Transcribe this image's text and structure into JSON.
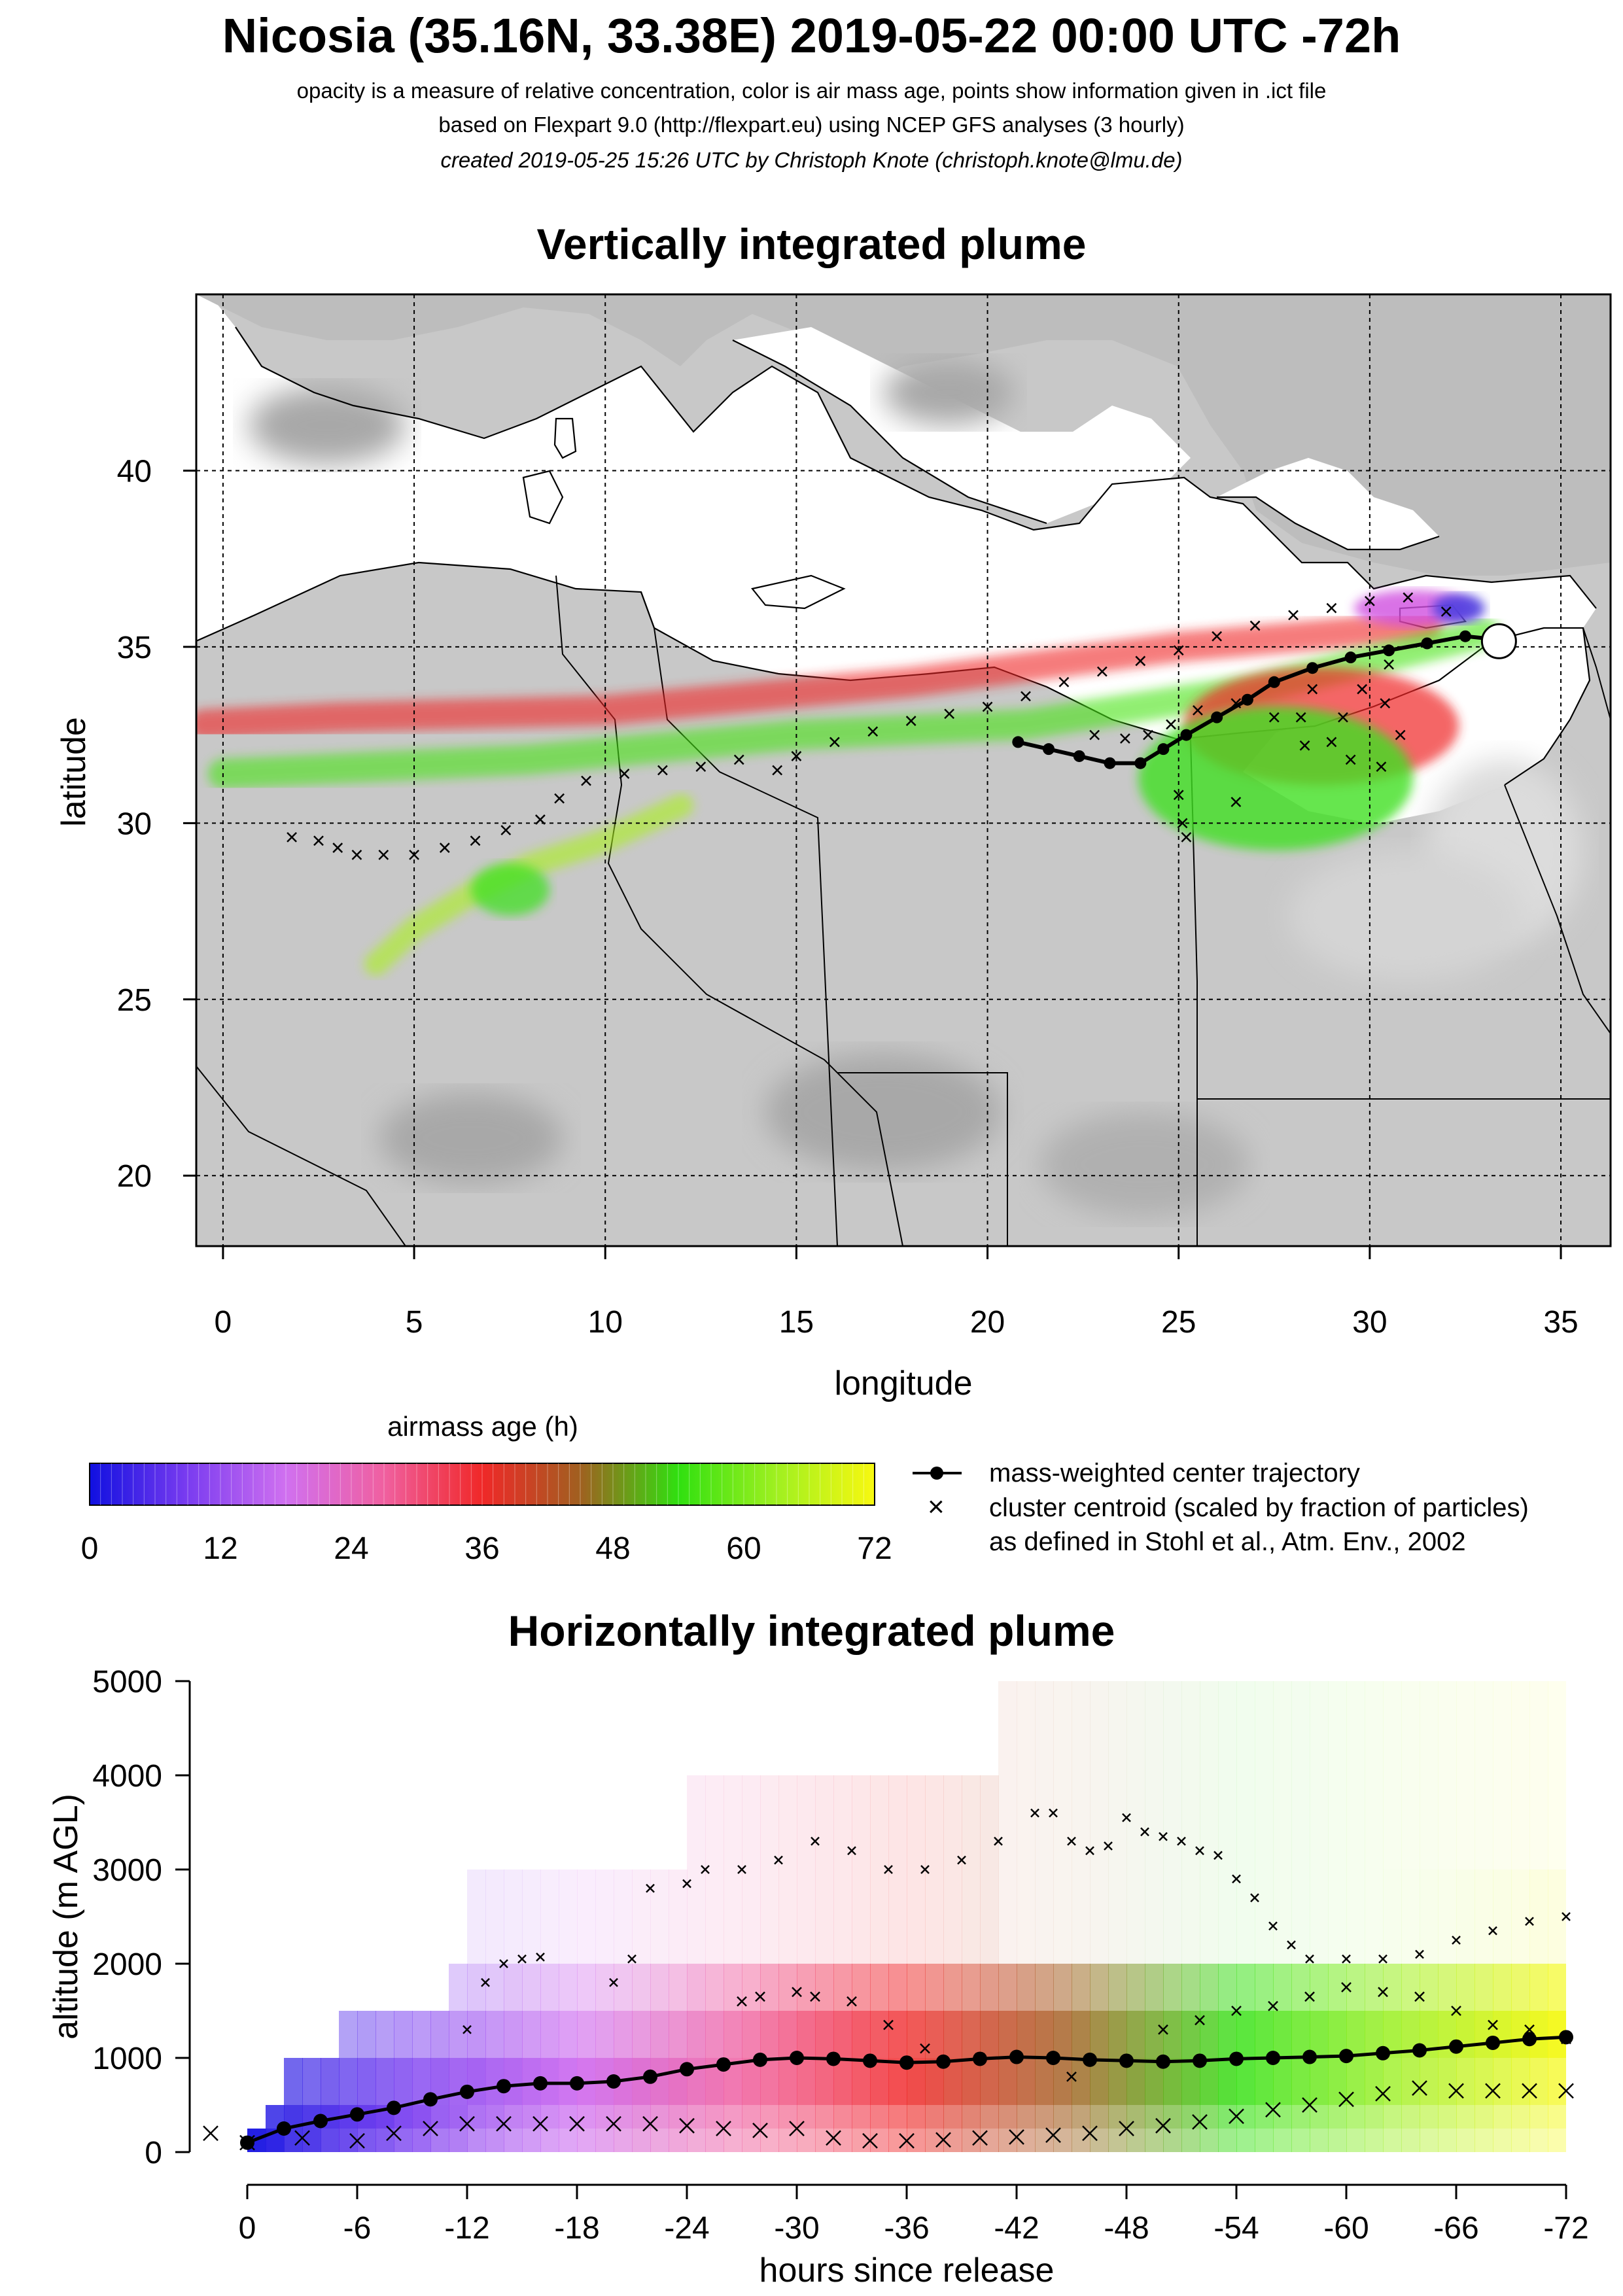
{
  "header": {
    "title": "Nicosia (35.16N, 33.38E) 2019-05-22 00:00 UTC -72h",
    "line1": "opacity is a measure of relative concentration, color is air mass age, points show information given in .ict file",
    "line2": "based on Flexpart 9.0 (http://flexpart.eu) using NCEP GFS analyses (3 hourly)",
    "line3": "created 2019-05-25 15:26 UTC by Christoph Knote (christoph.knote@lmu.de)"
  },
  "colors": {
    "age_ramp": [
      "#1010e0",
      "#7a3cf0",
      "#d070f0",
      "#f060a0",
      "#f02828",
      "#a06020",
      "#30e010",
      "#a0f020",
      "#f8f810"
    ],
    "map_background": "#c8c8c8",
    "land_white": "#ffffff"
  },
  "chart_data": [
    {
      "type": "map",
      "title": "Vertically integrated plume",
      "xlabel": "longitude",
      "ylabel": "latitude",
      "xlim": [
        -0.7,
        36.3
      ],
      "ylim": [
        18,
        45
      ],
      "xticks": [
        "0",
        "5",
        "10",
        "15",
        "20",
        "25",
        "30",
        "35"
      ],
      "yticks": [
        "20",
        "25",
        "30",
        "35",
        "40"
      ],
      "grid": true,
      "release_site": {
        "lon": 33.38,
        "lat": 35.16
      },
      "center_trajectory": [
        [
          33.4,
          35.2
        ],
        [
          32.5,
          35.3
        ],
        [
          31.5,
          35.1
        ],
        [
          30.5,
          34.9
        ],
        [
          29.5,
          34.7
        ],
        [
          28.5,
          34.4
        ],
        [
          27.5,
          34.0
        ],
        [
          26.8,
          33.5
        ],
        [
          26.0,
          33.0
        ],
        [
          25.2,
          32.5
        ],
        [
          24.6,
          32.1
        ],
        [
          24.0,
          31.7
        ],
        [
          23.2,
          31.7
        ],
        [
          22.4,
          31.9
        ],
        [
          21.6,
          32.1
        ],
        [
          20.8,
          32.3
        ]
      ],
      "cluster_centroids": [
        [
          1.8,
          29.6
        ],
        [
          2.5,
          29.5
        ],
        [
          3.0,
          29.3
        ],
        [
          3.5,
          29.1
        ],
        [
          4.2,
          29.1
        ],
        [
          5.0,
          29.1
        ],
        [
          5.8,
          29.3
        ],
        [
          6.6,
          29.5
        ],
        [
          7.4,
          29.8
        ],
        [
          8.3,
          30.1
        ],
        [
          8.8,
          30.7
        ],
        [
          9.5,
          31.2
        ],
        [
          10.5,
          31.4
        ],
        [
          11.5,
          31.5
        ],
        [
          12.5,
          31.6
        ],
        [
          13.5,
          31.8
        ],
        [
          14.5,
          31.5
        ],
        [
          15.0,
          31.9
        ],
        [
          16.0,
          32.3
        ],
        [
          17.0,
          32.6
        ],
        [
          18.0,
          32.9
        ],
        [
          19.0,
          33.1
        ],
        [
          20.0,
          33.3
        ],
        [
          21.0,
          33.6
        ],
        [
          22.0,
          34.0
        ],
        [
          23.0,
          34.3
        ],
        [
          24.0,
          34.6
        ],
        [
          25.0,
          34.9
        ],
        [
          26.0,
          35.3
        ],
        [
          27.0,
          35.6
        ],
        [
          28.0,
          35.9
        ],
        [
          29.0,
          36.1
        ],
        [
          30.0,
          36.3
        ],
        [
          31.0,
          36.4
        ],
        [
          32.0,
          36.0
        ],
        [
          30.5,
          34.5
        ],
        [
          29.8,
          33.8
        ],
        [
          29.3,
          33.0
        ],
        [
          29.0,
          32.3
        ],
        [
          29.5,
          31.8
        ],
        [
          30.3,
          31.6
        ],
        [
          30.8,
          32.5
        ],
        [
          30.4,
          33.4
        ],
        [
          28.5,
          33.8
        ],
        [
          28.2,
          33.0
        ],
        [
          28.3,
          32.2
        ],
        [
          27.5,
          33.0
        ],
        [
          26.5,
          33.4
        ],
        [
          25.5,
          33.2
        ],
        [
          24.8,
          32.8
        ],
        [
          24.2,
          32.5
        ],
        [
          23.6,
          32.4
        ],
        [
          22.8,
          32.5
        ],
        [
          25.0,
          30.8
        ],
        [
          25.1,
          30.0
        ],
        [
          25.2,
          29.6
        ],
        [
          26.5,
          30.6
        ]
      ],
      "plume_segments": [
        {
          "lon": [
            31.5,
            25.0,
            18.0,
            10.0,
            3.0,
            -0.5
          ],
          "lat": [
            35.6,
            35.0,
            34.0,
            33.2,
            33.0,
            32.8
          ],
          "age_h": 36
        },
        {
          "lon": [
            33.0,
            27.0,
            21.0,
            15.0,
            8.0,
            0.0
          ],
          "lat": [
            35.4,
            33.8,
            32.8,
            32.5,
            31.8,
            31.4
          ],
          "age_h": 56
        },
        {
          "lon": [
            12.0,
            10.0,
            8.0,
            6.5,
            5.0,
            4.0
          ],
          "lat": [
            30.5,
            29.5,
            28.8,
            28.0,
            27.0,
            26.0
          ],
          "age_h": 64
        }
      ]
    },
    {
      "type": "colorbar",
      "title": "airmass age (h)",
      "ticks": [
        "0",
        "12",
        "24",
        "36",
        "48",
        "60",
        "72"
      ],
      "min": 0,
      "max": 72
    },
    {
      "type": "heatmap",
      "title": "Horizontally integrated plume",
      "xlabel": "hours since release",
      "ylabel": "altitude (m AGL)",
      "xlim": [
        0,
        -72
      ],
      "ylim": [
        0,
        5000
      ],
      "xticks": [
        "0",
        "-6",
        "-12",
        "-18",
        "-24",
        "-30",
        "-36",
        "-42",
        "-48",
        "-54",
        "-60",
        "-66",
        "-72"
      ],
      "yticks": [
        "0",
        "1000",
        "2000",
        "3000",
        "4000",
        "5000"
      ],
      "layer_tops": [
        250,
        500,
        1000,
        1500,
        2000,
        3000,
        4000,
        5000
      ],
      "layer_onset_h": [
        0,
        1,
        2,
        5,
        11,
        12,
        24,
        41
      ],
      "center_altitude": [
        [
          0,
          100
        ],
        [
          -2,
          250
        ],
        [
          -4,
          330
        ],
        [
          -6,
          400
        ],
        [
          -8,
          470
        ],
        [
          -10,
          560
        ],
        [
          -12,
          640
        ],
        [
          -14,
          700
        ],
        [
          -16,
          730
        ],
        [
          -18,
          730
        ],
        [
          -20,
          750
        ],
        [
          -22,
          800
        ],
        [
          -24,
          880
        ],
        [
          -26,
          930
        ],
        [
          -28,
          980
        ],
        [
          -30,
          1000
        ],
        [
          -32,
          990
        ],
        [
          -34,
          970
        ],
        [
          -36,
          950
        ],
        [
          -38,
          960
        ],
        [
          -40,
          990
        ],
        [
          -42,
          1010
        ],
        [
          -44,
          1000
        ],
        [
          -46,
          980
        ],
        [
          -48,
          970
        ],
        [
          -50,
          960
        ],
        [
          -52,
          970
        ],
        [
          -54,
          990
        ],
        [
          -56,
          1000
        ],
        [
          -58,
          1010
        ],
        [
          -60,
          1020
        ],
        [
          -62,
          1050
        ],
        [
          -64,
          1080
        ],
        [
          -66,
          1120
        ],
        [
          -68,
          1160
        ],
        [
          -70,
          1200
        ],
        [
          -72,
          1220
        ]
      ],
      "cluster_high": [
        [
          -12,
          1300
        ],
        [
          -13,
          1800
        ],
        [
          -14,
          2000
        ],
        [
          -15,
          2050
        ],
        [
          -16,
          2070
        ],
        [
          -20,
          1800
        ],
        [
          -21,
          2050
        ],
        [
          -22,
          2800
        ],
        [
          -24,
          2850
        ],
        [
          -25,
          3000
        ],
        [
          -27,
          3000
        ],
        [
          -29,
          3100
        ],
        [
          -31,
          3300
        ],
        [
          -33,
          3200
        ],
        [
          -35,
          3000
        ],
        [
          -37,
          3000
        ],
        [
          -39,
          3100
        ],
        [
          -41,
          3300
        ],
        [
          -43,
          3600
        ],
        [
          -44,
          3600
        ],
        [
          -45,
          3300
        ],
        [
          -46,
          3200
        ],
        [
          -47,
          3250
        ],
        [
          -48,
          3550
        ],
        [
          -49,
          3400
        ],
        [
          -50,
          3350
        ],
        [
          -51,
          3300
        ],
        [
          -52,
          3200
        ],
        [
          -53,
          3150
        ],
        [
          -54,
          2900
        ],
        [
          -55,
          2700
        ],
        [
          -56,
          2400
        ],
        [
          -57,
          2200
        ],
        [
          -58,
          2050
        ],
        [
          -60,
          2050
        ],
        [
          -62,
          2050
        ],
        [
          -64,
          2100
        ],
        [
          -66,
          2250
        ],
        [
          -68,
          2350
        ],
        [
          -70,
          2450
        ],
        [
          -72,
          2500
        ]
      ],
      "cluster_mid": [
        [
          -27,
          1600
        ],
        [
          -28,
          1650
        ],
        [
          -30,
          1700
        ],
        [
          -31,
          1650
        ],
        [
          -33,
          1600
        ],
        [
          -35,
          1350
        ],
        [
          -37,
          1100
        ],
        [
          -40,
          1000
        ],
        [
          -45,
          800
        ],
        [
          -50,
          1300
        ],
        [
          -52,
          1400
        ],
        [
          -54,
          1500
        ],
        [
          -56,
          1550
        ],
        [
          -58,
          1650
        ],
        [
          -60,
          1750
        ],
        [
          -62,
          1700
        ],
        [
          -64,
          1650
        ],
        [
          -66,
          1500
        ],
        [
          -68,
          1350
        ],
        [
          -70,
          1300
        ],
        [
          -72,
          1200
        ]
      ],
      "cluster_low": [
        [
          0,
          100
        ],
        [
          2,
          200
        ],
        [
          -3,
          150
        ],
        [
          -6,
          120
        ],
        [
          -8,
          200
        ],
        [
          -10,
          250
        ],
        [
          -12,
          300
        ],
        [
          -14,
          300
        ],
        [
          -16,
          300
        ],
        [
          -18,
          300
        ],
        [
          -20,
          300
        ],
        [
          -22,
          300
        ],
        [
          -24,
          280
        ],
        [
          -26,
          250
        ],
        [
          -28,
          230
        ],
        [
          -30,
          250
        ],
        [
          -32,
          150
        ],
        [
          -34,
          120
        ],
        [
          -36,
          120
        ],
        [
          -38,
          130
        ],
        [
          -40,
          150
        ],
        [
          -42,
          160
        ],
        [
          -44,
          180
        ],
        [
          -46,
          200
        ],
        [
          -48,
          250
        ],
        [
          -50,
          280
        ],
        [
          -52,
          320
        ],
        [
          -54,
          380
        ],
        [
          -56,
          450
        ],
        [
          -58,
          500
        ],
        [
          -60,
          560
        ],
        [
          -62,
          620
        ],
        [
          -64,
          680
        ],
        [
          -66,
          650
        ],
        [
          -68,
          650
        ],
        [
          -70,
          650
        ],
        [
          -72,
          650
        ]
      ]
    }
  ],
  "legend": {
    "center_label": "mass-weighted center trajectory",
    "centroid_label": "cluster centroid (scaled by fraction of particles)",
    "ref_label": "as defined in Stohl et al., Atm. Env., 2002"
  }
}
